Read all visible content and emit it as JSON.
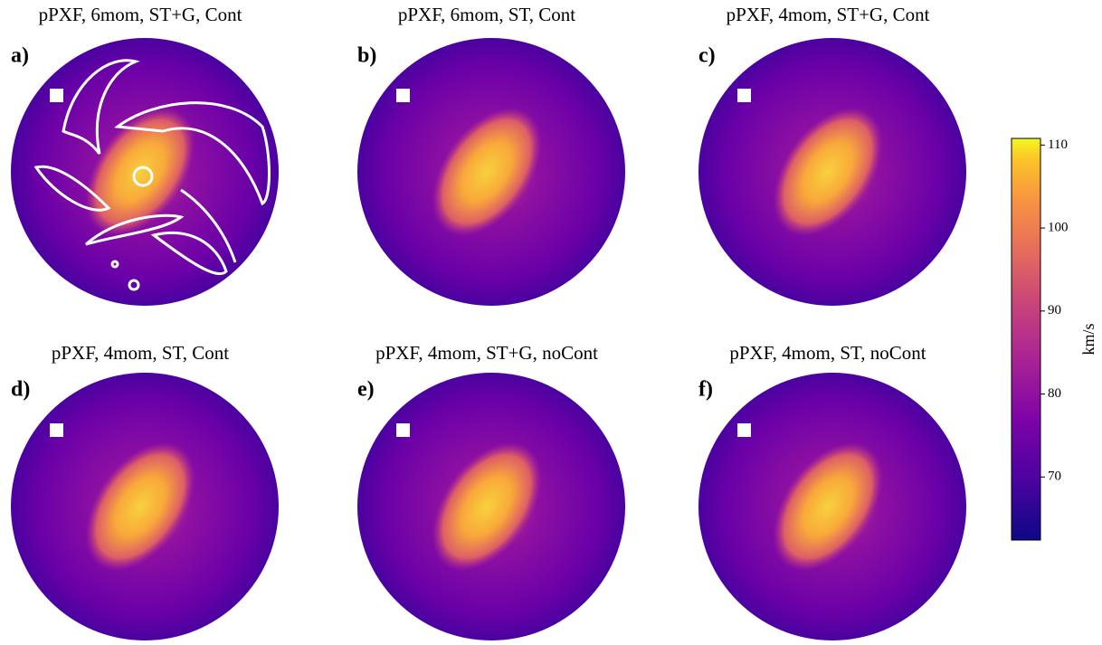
{
  "chart_data": {
    "type": "image-grid",
    "colormap": "plasma",
    "panels": [
      {
        "title": "pPXF, 6mom, ST+G, Cont",
        "label": "a)"
      },
      {
        "title": "pPXF, 6mom, ST, Cont",
        "label": "b)"
      },
      {
        "title": "pPXF, 4mom, ST+G, Cont",
        "label": "c)"
      },
      {
        "title": "pPXF, 4mom, ST, Cont",
        "label": "d)"
      },
      {
        "title": "pPXF, 4mom, ST+G, noCont",
        "label": "e)"
      },
      {
        "title": "pPXF, 4mom, ST, noCont",
        "label": "f)"
      }
    ],
    "colorbar": {
      "label": "km/s",
      "lim": [
        62.4,
        110.8
      ],
      "ticks": [
        70,
        80,
        90,
        100,
        110
      ]
    }
  }
}
